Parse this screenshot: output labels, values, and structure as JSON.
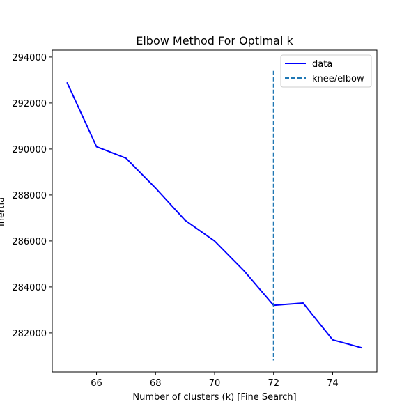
{
  "chart_data": {
    "type": "line",
    "title": "Elbow Method For Optimal k",
    "xlabel": "Number of clusters (k) [Fine Search]",
    "ylabel": "Inertia",
    "xlim": [
      64.5,
      75.5
    ],
    "ylim": [
      280300,
      294300
    ],
    "xticks": [
      66,
      68,
      70,
      72,
      74
    ],
    "yticks": [
      282000,
      284000,
      286000,
      288000,
      290000,
      292000,
      294000
    ],
    "grid": false,
    "legend_position": "top-right",
    "series": [
      {
        "name": "data",
        "color": "#0000ff",
        "style": "solid",
        "x": [
          65,
          66,
          67,
          68,
          69,
          70,
          71,
          72,
          73,
          74,
          75
        ],
        "y": [
          292900,
          290100,
          289600,
          288300,
          286900,
          286000,
          284700,
          283200,
          283300,
          281700,
          281350
        ]
      }
    ],
    "knee": {
      "name": "knee/elbow",
      "color": "#1f77b4",
      "style": "dashed",
      "x": 72,
      "y_range": [
        280800,
        293400
      ]
    }
  }
}
